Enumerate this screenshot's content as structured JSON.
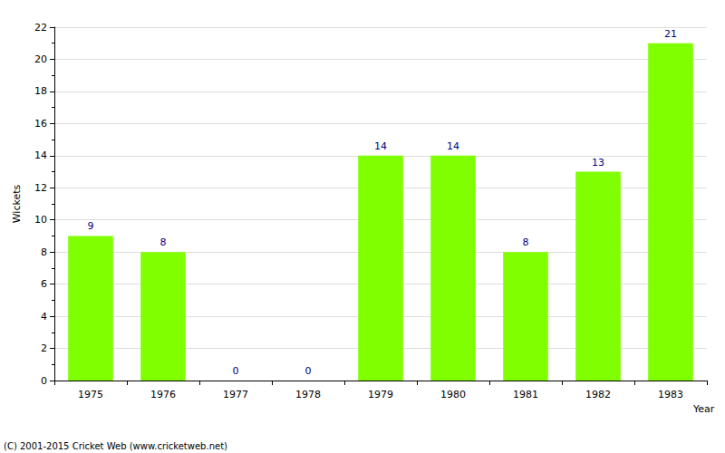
{
  "chart_data": {
    "type": "bar",
    "x_label": "Year",
    "y_label": "Wickets",
    "annotations": [
      "(C) 2001-2015 Cricket Web (www.cricketweb.net)"
    ],
    "categories": [
      "1975",
      "1976",
      "1977",
      "1978",
      "1979",
      "1980",
      "1981",
      "1982",
      "1983"
    ],
    "values": [
      9,
      8,
      0,
      0,
      14,
      14,
      8,
      13,
      21
    ],
    "color": "#80ff00",
    "ylim": [
      0,
      22
    ],
    "yticks": [
      0,
      2,
      4,
      6,
      8,
      10,
      12,
      14,
      16,
      18,
      20,
      22
    ],
    "grid": true,
    "data_labels": true
  }
}
